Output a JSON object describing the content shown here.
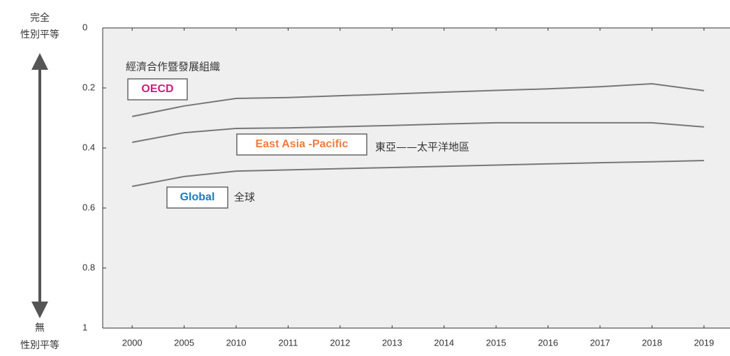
{
  "chart_data": {
    "type": "line",
    "y_label_top": [
      "完全",
      "性別平等"
    ],
    "y_label_bottom": [
      "無",
      "性別平等"
    ],
    "categories": [
      "2000",
      "2005",
      "2010",
      "2011",
      "2012",
      "2013",
      "2014",
      "2015",
      "2016",
      "2017",
      "2018",
      "2019"
    ],
    "ylim": [
      0,
      1
    ],
    "yticks": [
      0,
      0.2,
      0.4,
      0.6,
      0.8,
      1
    ],
    "y_inverted": true,
    "line_color": "#777777",
    "background": "#efefef",
    "series": [
      {
        "name": "OECD",
        "label": "經濟合作暨發展組織",
        "color": "#d6197f",
        "values": [
          0.295,
          0.26,
          0.235,
          0.232,
          0.226,
          0.22,
          0.214,
          0.208,
          0.203,
          0.196,
          0.186,
          0.209
        ]
      },
      {
        "name": "East Asia -Pacific",
        "label": "東亞——太平洋地區",
        "color": "#f07d3c",
        "values": [
          0.381,
          0.349,
          0.335,
          0.333,
          0.329,
          0.325,
          0.32,
          0.316,
          0.316,
          0.316,
          0.316,
          0.33
        ]
      },
      {
        "name": "Global",
        "label": "全球",
        "color": "#1a7bbf",
        "values": [
          0.528,
          0.495,
          0.477,
          0.473,
          0.469,
          0.465,
          0.461,
          0.457,
          0.453,
          0.449,
          0.446,
          0.442
        ]
      }
    ]
  }
}
